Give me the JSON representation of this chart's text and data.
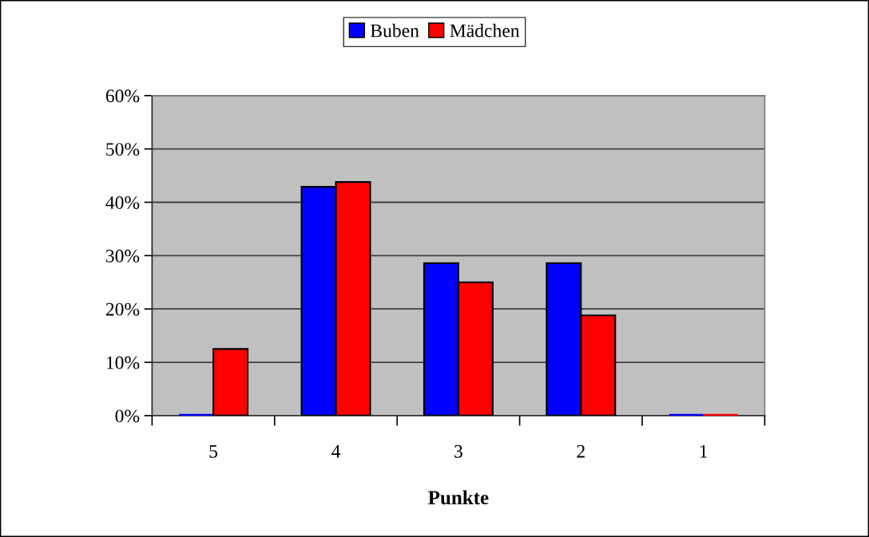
{
  "chart_data": {
    "type": "bar",
    "xlabel": "Punkte",
    "categories": [
      "5",
      "4",
      "3",
      "2",
      "1"
    ],
    "series": [
      {
        "name": "Buben",
        "color": "#0000ff",
        "values": [
          0,
          42.9,
          28.6,
          28.6,
          0
        ]
      },
      {
        "name": "Mädchen",
        "color": "#ff0000",
        "values": [
          12.5,
          43.8,
          25,
          18.8,
          0
        ]
      }
    ],
    "ylim": [
      0,
      60
    ],
    "yticks": [
      {
        "value": 0,
        "label": "0%"
      },
      {
        "value": 10,
        "label": "10%"
      },
      {
        "value": 20,
        "label": "20%"
      },
      {
        "value": 30,
        "label": "30%"
      },
      {
        "value": 40,
        "label": "40%"
      },
      {
        "value": 50,
        "label": "50%"
      },
      {
        "value": 60,
        "label": "60%"
      }
    ],
    "grid": "y",
    "legend": "top"
  }
}
